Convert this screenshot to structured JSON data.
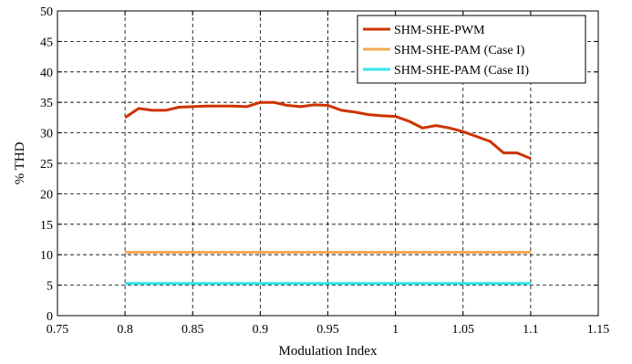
{
  "chart_data": {
    "type": "line",
    "title": "",
    "xlabel": "Modulation Index",
    "ylabel": "% THD",
    "xlim": [
      0.75,
      1.15
    ],
    "ylim": [
      0,
      50
    ],
    "xticks": [
      "0.75",
      "0.8",
      "0.85",
      "0.9",
      "0.95",
      "1",
      "1.05",
      "1.1",
      "1.15"
    ],
    "yticks": [
      "0",
      "5",
      "10",
      "15",
      "20",
      "25",
      "30",
      "35",
      "40",
      "45",
      "50"
    ],
    "xtick_values": [
      0.75,
      0.8,
      0.85,
      0.9,
      0.95,
      1.0,
      1.05,
      1.1,
      1.15
    ],
    "ytick_values": [
      0,
      5,
      10,
      15,
      20,
      25,
      30,
      35,
      40,
      45,
      50
    ],
    "grid": true,
    "grid_style": "dashed",
    "legend_position": "top-right",
    "series": [
      {
        "name": "SHM-SHE-PWM",
        "color": "#cc3300",
        "x": [
          0.8,
          0.81,
          0.82,
          0.83,
          0.84,
          0.85,
          0.86,
          0.87,
          0.88,
          0.89,
          0.9,
          0.91,
          0.92,
          0.93,
          0.94,
          0.95,
          0.96,
          0.97,
          0.98,
          0.99,
          1.0,
          1.01,
          1.02,
          1.03,
          1.04,
          1.05,
          1.06,
          1.07,
          1.08,
          1.09,
          1.1
        ],
        "y": [
          32.5,
          34.0,
          33.7,
          33.7,
          34.2,
          34.3,
          34.4,
          34.4,
          34.4,
          34.3,
          35.0,
          35.0,
          34.5,
          34.3,
          34.6,
          34.5,
          33.7,
          33.4,
          33.0,
          32.8,
          32.7,
          31.9,
          30.8,
          31.2,
          30.8,
          30.2,
          29.4,
          28.6,
          26.7,
          26.7,
          25.8
        ]
      },
      {
        "name": "SHM-SHE-PAM (Case I)",
        "color": "#f5a955",
        "x": [
          0.8,
          1.1
        ],
        "y": [
          10.4,
          10.4
        ]
      },
      {
        "name": "SHM-SHE-PAM (Case II)",
        "color": "#33e6ee",
        "x": [
          0.8,
          1.1
        ],
        "y": [
          5.3,
          5.3
        ]
      }
    ]
  }
}
